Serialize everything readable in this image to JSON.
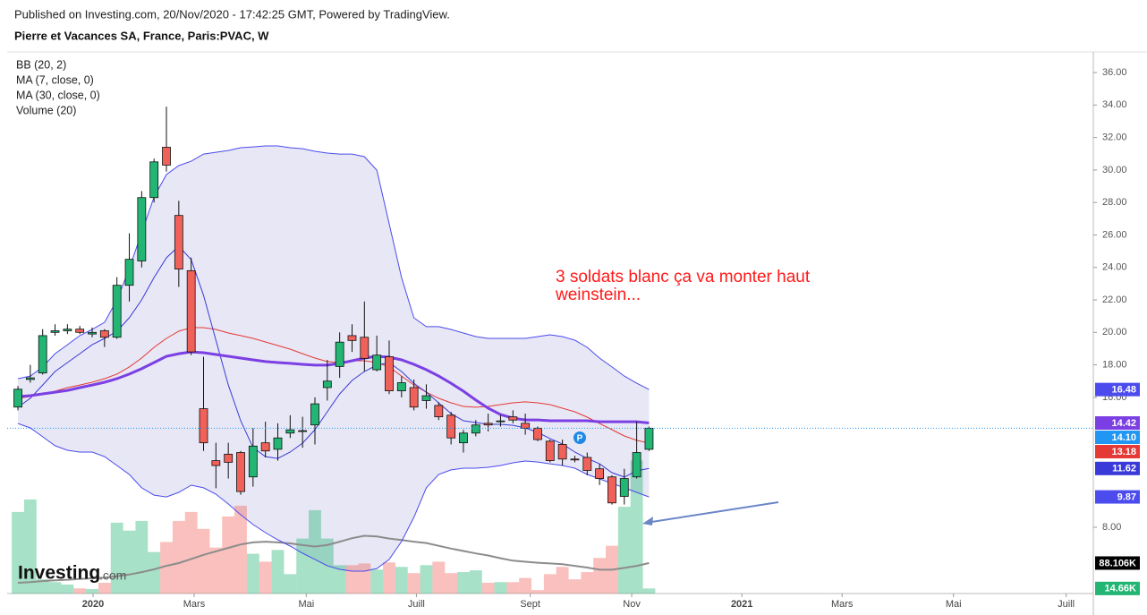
{
  "header": "Published on Investing.com, 20/Nov/2020 - 17:42:25 GMT, Powered by TradingView.",
  "chart_data": {
    "type": "candlestick",
    "title": "Pierre et Vacances SA, France, Paris:PVAC, W",
    "indicators": [
      "BB (20, 2)",
      "MA (7, close, 0)",
      "MA (30, close, 0)",
      "Volume (20)"
    ],
    "annotation": [
      "3 soldats blanc ça va monter haut",
      "weinstein..."
    ],
    "marker_label": "P",
    "watermark": [
      "Investing",
      ".com"
    ],
    "up_color": "#22b573",
    "down_color": "#f0615a",
    "price_line_color": "#2196f3",
    "open": [
      15.4,
      17.1,
      17.5,
      20.0,
      20.1,
      20.2,
      19.9,
      20.1,
      19.7,
      22.9,
      24.4,
      28.3,
      31.4,
      27.2,
      23.8,
      15.3,
      12.1,
      12.5,
      12.6,
      11.1,
      13.2,
      12.8,
      13.8,
      13.9,
      14.3,
      16.6,
      17.9,
      19.8,
      19.7,
      17.7,
      18.5,
      16.4,
      16.6,
      15.8,
      15.5,
      14.9,
      13.2,
      13.8,
      14.4,
      14.5,
      14.8,
      14.4,
      14.1,
      13.3,
      13.1,
      12.2,
      12.3,
      11.6,
      11.1,
      9.9,
      11.1,
      12.8
    ],
    "high": [
      16.7,
      18.0,
      20.2,
      20.5,
      20.5,
      20.4,
      20.3,
      20.2,
      23.4,
      26.1,
      28.7,
      30.7,
      33.9,
      28.1,
      24.6,
      18.5,
      13.2,
      13.2,
      12.7,
      14.1,
      14.5,
      14.4,
      14.9,
      14.8,
      16.0,
      18.3,
      20.0,
      20.5,
      21.9,
      19.8,
      19.5,
      17.3,
      17.1,
      16.8,
      15.7,
      15.1,
      14.0,
      14.6,
      15.0,
      14.9,
      15.2,
      15.0,
      14.2,
      13.4,
      13.4,
      12.4,
      12.6,
      11.9,
      11.2,
      11.6,
      14.5,
      14.2
    ],
    "low": [
      15.2,
      16.9,
      17.4,
      19.8,
      19.9,
      19.9,
      19.7,
      19.1,
      19.6,
      21.9,
      24.0,
      28.0,
      29.9,
      22.8,
      18.6,
      12.7,
      10.4,
      11.0,
      10.0,
      10.5,
      12.3,
      12.1,
      13.5,
      12.9,
      13.1,
      15.8,
      17.2,
      18.8,
      17.6,
      17.6,
      16.2,
      16.0,
      15.2,
      15.3,
      14.6,
      13.1,
      12.6,
      13.6,
      13.9,
      14.2,
      14.4,
      13.7,
      13.3,
      12.0,
      11.8,
      12.0,
      11.2,
      10.6,
      9.4,
      9.4,
      11.0,
      12.7
    ],
    "close": [
      16.5,
      17.2,
      19.8,
      20.1,
      20.2,
      20.0,
      20.0,
      19.7,
      22.9,
      24.5,
      28.3,
      30.5,
      30.3,
      23.9,
      18.8,
      13.2,
      11.8,
      12.0,
      10.2,
      13.0,
      12.7,
      13.5,
      14.0,
      13.95,
      15.6,
      17.0,
      19.4,
      19.5,
      18.4,
      18.6,
      16.4,
      16.9,
      15.4,
      16.1,
      14.8,
      13.5,
      13.8,
      14.3,
      14.3,
      14.55,
      14.6,
      14.1,
      13.4,
      12.1,
      12.2,
      12.15,
      11.5,
      11.0,
      9.5,
      11.0,
      12.6,
      14.1
    ],
    "last_label": "14.10",
    "band": {
      "color": "#4b4bee",
      "fill": "#e3e3f3",
      "upper": {
        "values": [
          17.15,
          17.31,
          17.87,
          18.69,
          19.24,
          19.8,
          20.18,
          20.62,
          22.0,
          23.93,
          26.13,
          28.34,
          29.72,
          30.27,
          30.54,
          30.98,
          31.09,
          31.2,
          31.37,
          31.42,
          31.48,
          31.48,
          31.37,
          31.31,
          31.15,
          31.04,
          30.98,
          30.98,
          30.82,
          29.99,
          26.68,
          23.38,
          20.9,
          20.35,
          20.35,
          20.18,
          19.96,
          19.74,
          19.63,
          19.63,
          19.63,
          19.63,
          19.74,
          19.85,
          19.74,
          19.52,
          19.08,
          18.42,
          17.87,
          17.31,
          16.87,
          16.48
        ],
        "last_label": "16.48"
      },
      "lower": {
        "values": [
          14.39,
          14.12,
          13.57,
          13.02,
          12.74,
          12.63,
          12.63,
          12.35,
          11.8,
          11.25,
          10.43,
          9.98,
          9.87,
          10.15,
          10.59,
          10.43,
          10.04,
          9.43,
          8.77,
          8.17,
          7.67,
          7.23,
          6.84,
          6.4,
          6.02,
          5.63,
          5.41,
          5.3,
          5.3,
          5.46,
          6.02,
          7.12,
          8.61,
          10.43,
          11.25,
          11.53,
          11.64,
          11.64,
          11.69,
          11.8,
          11.97,
          12.08,
          12.02,
          11.91,
          11.8,
          11.64,
          11.25,
          10.98,
          10.7,
          10.43,
          10.15,
          9.87
        ],
        "last_label": "9.87"
      },
      "basis": {
        "color": "#e53935",
        "values": [
          15.94,
          16.05,
          16.21,
          16.38,
          16.6,
          16.76,
          16.93,
          17.15,
          17.43,
          17.87,
          18.42,
          19.08,
          19.63,
          20.07,
          20.29,
          20.29,
          20.18,
          19.96,
          19.8,
          19.63,
          19.41,
          19.19,
          18.97,
          18.69,
          18.42,
          18.2,
          18.14,
          18.25,
          18.25,
          18.14,
          17.87,
          17.31,
          16.76,
          16.32,
          15.94,
          15.66,
          15.44,
          15.39,
          15.44,
          15.55,
          15.66,
          15.72,
          15.66,
          15.55,
          15.33,
          15.11,
          14.78,
          14.39,
          14.01,
          13.62,
          13.35,
          13.18
        ],
        "last_label": "13.18"
      }
    },
    "overlays": [
      {
        "color": "#3a3ad8",
        "width": 1,
        "values": [
          15.39,
          15.94,
          16.76,
          17.59,
          18.14,
          18.69,
          19.24,
          19.63,
          20.07,
          20.9,
          22.0,
          23.38,
          24.59,
          25.31,
          24.48,
          22.28,
          19.52,
          16.76,
          14.56,
          12.91,
          12.35,
          12.24,
          12.63,
          13.18,
          14.01,
          15.11,
          16.21,
          17.04,
          17.59,
          17.98,
          18.14,
          17.59,
          16.87,
          16.32,
          15.66,
          15.0,
          14.56,
          14.45,
          14.34,
          14.34,
          14.28,
          14.12,
          13.84,
          13.46,
          13.13,
          12.63,
          12.24,
          11.91,
          11.36,
          11.09,
          11.47,
          11.62
        ],
        "last_label": "11.62"
      },
      {
        "color": "#7b3fe4",
        "width": 3,
        "values": [
          16.05,
          16.1,
          16.21,
          16.32,
          16.43,
          16.6,
          16.76,
          16.93,
          17.15,
          17.43,
          17.76,
          18.14,
          18.53,
          18.69,
          18.8,
          18.75,
          18.64,
          18.53,
          18.42,
          18.31,
          18.2,
          18.14,
          18.09,
          18.03,
          17.98,
          17.98,
          18.09,
          18.25,
          18.42,
          18.53,
          18.47,
          18.31,
          18.03,
          17.7,
          17.31,
          16.87,
          16.38,
          15.83,
          15.33,
          14.94,
          14.72,
          14.61,
          14.61,
          14.56,
          14.56,
          14.56,
          14.56,
          14.5,
          14.5,
          14.5,
          14.5,
          14.42
        ],
        "last_label": "14.42"
      }
    ],
    "volume": {
      "values": [
        236,
        272,
        41,
        33,
        26,
        15,
        13,
        31,
        205,
        182,
        210,
        120,
        149,
        210,
        236,
        187,
        133,
        223,
        254,
        115,
        92,
        126,
        56,
        159,
        241,
        159,
        82,
        82,
        87,
        69,
        90,
        77,
        59,
        82,
        92,
        59,
        62,
        67,
        31,
        33,
        33,
        45,
        10,
        56,
        77,
        41,
        62,
        103,
        138,
        251,
        385,
        14.66
      ],
      "last_label": "14.66K",
      "vlim": [
        0,
        1567
      ],
      "ma": {
        "color": "#8c8c8c",
        "tag_color": "#000000",
        "values": [
          31,
          33,
          36,
          38,
          40,
          42,
          44,
          46,
          50,
          55,
          62,
          70,
          80,
          88,
          100,
          112,
          122,
          132,
          142,
          148,
          150,
          148,
          145,
          140,
          136,
          140,
          150,
          160,
          167,
          165,
          159,
          155,
          150,
          146,
          138,
          130,
          123,
          116,
          110,
          102,
          95,
          92,
          89,
          87,
          85,
          80,
          75,
          69,
          69,
          74,
          80,
          88.106
        ],
        "last_label": "88.106K"
      }
    },
    "xlim": [
      -0.87,
      86.9
    ],
    "xticks": [
      {
        "value": 6.07,
        "label": "2020"
      },
      {
        "value": 14.24,
        "label": "Mars"
      },
      {
        "value": 23.3,
        "label": "Mai"
      },
      {
        "value": 32.2,
        "label": "Juill"
      },
      {
        "value": 41.4,
        "label": "Sept"
      },
      {
        "value": 49.6,
        "label": "Nov"
      },
      {
        "value": 58.5,
        "label": "2021"
      },
      {
        "value": 66.6,
        "label": "Mars"
      },
      {
        "value": 75.6,
        "label": "Mai"
      },
      {
        "value": 84.7,
        "label": "Juill"
      }
    ],
    "ylim": [
      3.92,
      37.27
    ],
    "yticks": [
      {
        "value": 8,
        "label": "8.00"
      },
      {
        "value": 16,
        "label": "16.00"
      },
      {
        "value": 18,
        "label": "18.00"
      },
      {
        "value": 20,
        "label": "20.00"
      },
      {
        "value": 22,
        "label": "22.00"
      },
      {
        "value": 24,
        "label": "24.00"
      },
      {
        "value": 26,
        "label": "26.00"
      },
      {
        "value": 28,
        "label": "28.00"
      },
      {
        "value": 30,
        "label": "30.00"
      },
      {
        "value": 32,
        "label": "32.00"
      },
      {
        "value": 34,
        "label": "34.00"
      },
      {
        "value": 36,
        "label": "36.00"
      }
    ]
  }
}
